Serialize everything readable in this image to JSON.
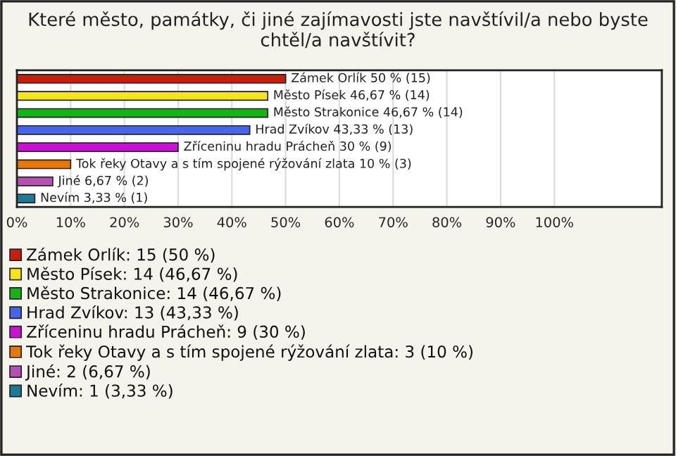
{
  "chart_data": {
    "type": "bar",
    "orientation": "horizontal",
    "title": "Které město, památky, či jiné zajímavosti jste navštívil/a nebo byste chtěl/a navštívit?",
    "categories": [
      null,
      null,
      null,
      null,
      null,
      null,
      null,
      null
    ],
    "series": [
      {
        "name": "Zámek Orlík: 15 (50 %)",
        "color": "#c81e0a",
        "values": [
          50,
          null,
          null,
          null,
          null,
          null,
          null,
          null
        ],
        "value_labels": [
          "Zámek Orlík 50 % (15)",
          null,
          null,
          null,
          null,
          null,
          null,
          null
        ]
      },
      {
        "name": "Město Písek: 14 (46,67 %)",
        "color": "#f5e614",
        "values": [
          null,
          46.67,
          null,
          null,
          null,
          null,
          null,
          null
        ],
        "value_labels": [
          null,
          "Město Písek 46,67 % (14)",
          null,
          null,
          null,
          null,
          null,
          null
        ]
      },
      {
        "name": "Město Strakonice: 14 (46,67 %)",
        "color": "#14b414",
        "values": [
          null,
          null,
          46.67,
          null,
          null,
          null,
          null,
          null
        ],
        "value_labels": [
          null,
          null,
          "Město Strakonice 46,67 % (14)",
          null,
          null,
          null,
          null,
          null
        ]
      },
      {
        "name": "Hrad Zvíkov: 13 (43,33 %)",
        "color": "#4664f0",
        "values": [
          null,
          null,
          null,
          43.33,
          null,
          null,
          null,
          null
        ],
        "value_labels": [
          null,
          null,
          null,
          "Hrad Zvíkov 43,33 % (13)",
          null,
          null,
          null,
          null
        ]
      },
      {
        "name": "Zříceninu hradu Prácheň: 9 (30 %)",
        "color": "#c814d2",
        "values": [
          null,
          null,
          null,
          null,
          30,
          null,
          null,
          null
        ],
        "value_labels": [
          null,
          null,
          null,
          null,
          "Zříceninu hradu Prácheň 30 % (9)",
          null,
          null,
          null
        ]
      },
      {
        "name": "Tok řeky Otavy a s tím spojené rýžování zlata: 3 (10 %)",
        "color": "#e6780a",
        "values": [
          null,
          null,
          null,
          null,
          null,
          10,
          null,
          null
        ],
        "value_labels": [
          null,
          null,
          null,
          null,
          null,
          "Tok řeky Otavy a s tím spojené rýžování zlata 10 % (3)",
          null,
          null
        ]
      },
      {
        "name": "Jiné: 2 (6,67 %)",
        "color": "#b450b4",
        "values": [
          null,
          null,
          null,
          null,
          null,
          null,
          6.67,
          null
        ],
        "value_labels": [
          null,
          null,
          null,
          null,
          null,
          null,
          "Jiné 6,67 % (2)",
          null
        ]
      },
      {
        "name": "Nevím: 1 (3,33 %)",
        "color": "#1e7896",
        "values": [
          null,
          null,
          null,
          null,
          null,
          null,
          null,
          3.33
        ],
        "value_labels": [
          null,
          null,
          null,
          null,
          null,
          null,
          null,
          "Nevím 3,33 % (1)"
        ]
      }
    ],
    "xlim": [
      0,
      120
    ],
    "xticks": [
      {
        "value": 0,
        "label": "0%"
      },
      {
        "value": 10,
        "label": "10%"
      },
      {
        "value": 20,
        "label": "20%"
      },
      {
        "value": 30,
        "label": "30%"
      },
      {
        "value": 40,
        "label": "40%"
      },
      {
        "value": 50,
        "label": "50%"
      },
      {
        "value": 60,
        "label": "60%"
      },
      {
        "value": 70,
        "label": "70%"
      },
      {
        "value": 80,
        "label": "80%"
      },
      {
        "value": 90,
        "label": "90%"
      },
      {
        "value": 100,
        "label": "100%"
      }
    ],
    "grid": "x",
    "legend": "bottom",
    "tick_labels": "x"
  }
}
